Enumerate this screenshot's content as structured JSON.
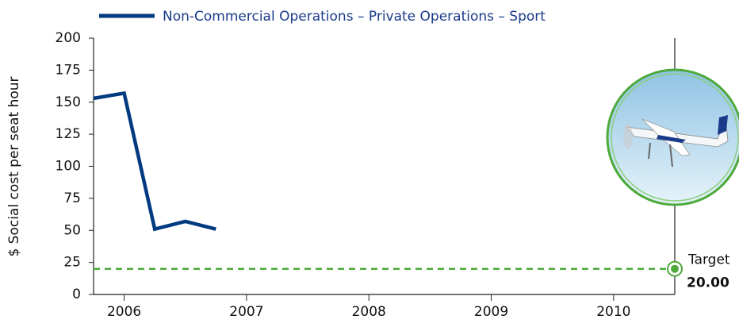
{
  "chart_data": {
    "type": "line",
    "y_label": "$ Social cost per seat hour",
    "x": [
      2005.75,
      2006,
      2006.25,
      2006.5,
      2006.75
    ],
    "series": [
      {
        "name": "Non-Commercial Operations – Private Operations – Sport",
        "color": "#003a80",
        "values": [
          153,
          157,
          51,
          57,
          51
        ]
      }
    ],
    "xlim": [
      2005.75,
      2010.5
    ],
    "xticks": [
      2006,
      2007,
      2008,
      2009,
      2010
    ],
    "ylim": [
      0,
      200
    ],
    "yticks": [
      0,
      25,
      50,
      75,
      100,
      125,
      150,
      175,
      200
    ],
    "target": {
      "name": "Target",
      "values": [
        20
      ],
      "value_labels": [
        "20.00"
      ],
      "color": "#4daa3b"
    }
  }
}
